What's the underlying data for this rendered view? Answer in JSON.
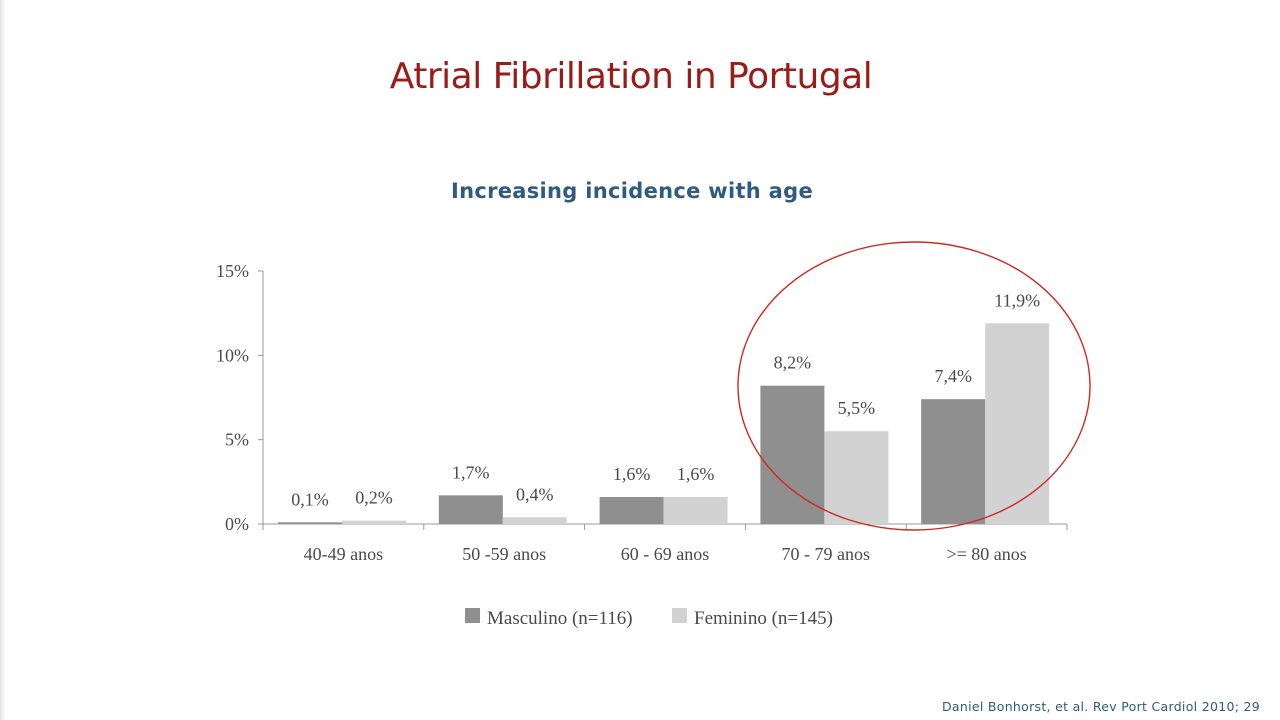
{
  "slide": {
    "title": "Atrial Fibrillation in Portugal",
    "subtitle": "Increasing incidence with age",
    "citation": "Daniel Bonhorst, et al. Rev Port Cardiol 2010; 29"
  },
  "chart_data": {
    "type": "bar",
    "categories": [
      "40-49 anos",
      "50 -59 anos",
      "60 - 69 anos",
      "70 - 79 anos",
      ">= 80 anos"
    ],
    "series": [
      {
        "name": "Masculino (n=116)",
        "values": [
          0.1,
          1.7,
          1.6,
          8.2,
          7.4
        ],
        "labels": [
          "0,1%",
          "1,7%",
          "1,6%",
          "8,2%",
          "7,4%"
        ],
        "color": "#8f8f8f"
      },
      {
        "name": "Feminino (n=145)",
        "values": [
          0.2,
          0.4,
          1.6,
          5.5,
          11.9
        ],
        "labels": [
          "0,2%",
          "0,4%",
          "1,6%",
          "5,5%",
          "11,9%"
        ],
        "color": "#d2d2d2"
      }
    ],
    "y_ticks": [
      {
        "value": 0,
        "label": "0%"
      },
      {
        "value": 5,
        "label": "5%"
      },
      {
        "value": 10,
        "label": "10%"
      },
      {
        "value": 15,
        "label": "15%"
      }
    ],
    "ylim": [
      0,
      15
    ],
    "legend_position": "bottom",
    "grid": false,
    "annotation": {
      "type": "ellipse",
      "highlight_categories": [
        "70 - 79 anos",
        ">= 80 anos"
      ],
      "color": "#cc2a20"
    }
  }
}
